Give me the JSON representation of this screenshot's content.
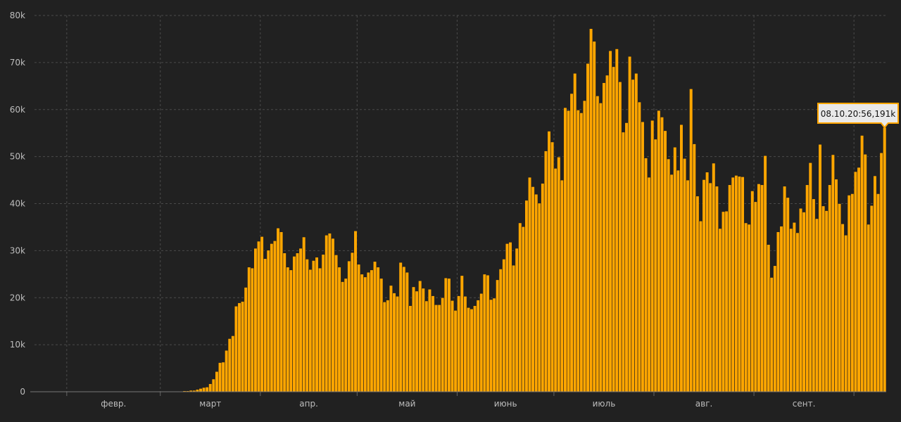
{
  "chart_data": {
    "type": "bar",
    "x_start": "2020-01-22",
    "x_end": "2020-10-08",
    "y_ticks": [
      "0",
      "10k",
      "20k",
      "30k",
      "40k",
      "50k",
      "60k",
      "70k",
      "80k"
    ],
    "ylim": [
      0,
      80000
    ],
    "x_ticks": [
      "февр.",
      "март",
      "апр.",
      "май",
      "июнь",
      "июль",
      "авг.",
      "сент."
    ],
    "grid": true,
    "colors": {
      "background": "#212121",
      "bar": "#ffa600",
      "bar_edge": "#1e1e1e",
      "grid": "#4a4a4a",
      "axis_text": "#bdbdbd",
      "tooltip_bg": "#e9e9e9",
      "tooltip_border": "#ffa600"
    },
    "tooltip": "08.10.20:56,191k",
    "values": [
      0,
      0,
      0,
      0,
      0,
      0,
      0,
      0,
      0,
      0,
      0,
      0,
      0,
      0,
      0,
      0,
      0,
      0,
      0,
      0,
      0,
      0,
      0,
      0,
      0,
      0,
      0,
      0,
      0,
      0,
      0,
      0,
      0,
      0,
      0,
      0,
      0,
      0,
      0,
      0,
      0,
      0,
      0,
      0,
      0,
      100,
      200,
      200,
      300,
      300,
      500,
      700,
      900,
      1000,
      1700,
      2700,
      4300,
      6200,
      6300,
      8800,
      11300,
      11900,
      18200,
      18900,
      19200,
      22200,
      26500,
      26300,
      30500,
      32000,
      33000,
      28300,
      30100,
      31500,
      32100,
      34800,
      34000,
      29500,
      26500,
      25900,
      28800,
      29500,
      30500,
      32900,
      28200,
      26000,
      27900,
      28600,
      26300,
      29200,
      33300,
      33700,
      32600,
      29100,
      26500,
      23400,
      24100,
      27800,
      29600,
      34200,
      27100,
      25000,
      24400,
      25400,
      25900,
      27700,
      26500,
      24100,
      19100,
      19500,
      22600,
      21000,
      20300,
      27500,
      26600,
      25400,
      18300,
      22300,
      21400,
      23600,
      22000,
      19300,
      21800,
      20400,
      18500,
      18500,
      20000,
      24200,
      24100,
      19400,
      17300,
      20400,
      24700,
      20300,
      17900,
      17600,
      18300,
      19500,
      20900,
      25000,
      24800,
      19600,
      19900,
      23800,
      26100,
      28200,
      31500,
      31800,
      26900,
      30500,
      35900,
      35100,
      40700,
      45600,
      43600,
      42000,
      40100,
      44300,
      51200,
      55400,
      53100,
      47500,
      49900,
      45000,
      60400,
      59800,
      63400,
      67700,
      59900,
      59300,
      61900,
      69800,
      77200,
      74500,
      62900,
      61400,
      65700,
      67300,
      72500,
      69100,
      72900,
      65900,
      55200,
      57200,
      71300,
      66400,
      67700,
      61600,
      57400,
      49700,
      45600,
      57700,
      53700,
      59800,
      58400,
      55500,
      49500,
      46200,
      52000,
      47100,
      56800,
      49600,
      45000,
      64400,
      52700,
      41600,
      36300,
      45100,
      46700,
      44400,
      48600,
      43700,
      34700,
      38300,
      38400,
      44000,
      45600,
      46000,
      45800,
      45700,
      35900,
      35600,
      42700,
      40400,
      44200,
      44000,
      50200,
      31300,
      24300,
      26800,
      34000,
      35200,
      43700,
      41300,
      34700,
      36000,
      33800,
      39000,
      38200,
      44000,
      48700,
      41000,
      36800,
      52600,
      39500,
      38500,
      44000,
      50400,
      45200,
      40000,
      35700,
      33300,
      41800,
      42100,
      46800,
      47700,
      54500,
      50500,
      35600,
      39600,
      45900,
      42100,
      50800,
      56191
    ]
  }
}
